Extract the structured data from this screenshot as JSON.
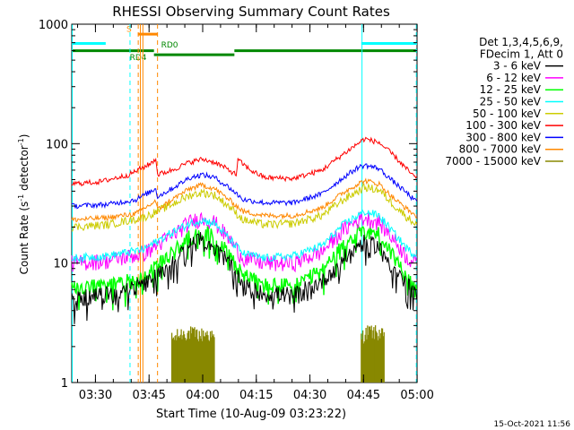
{
  "chart_data": {
    "type": "line",
    "title": "RHESSI Observing Summary Count Rates",
    "xlabel": "Start Time (10-Aug-09 03:23:22)",
    "ylabel_parts": [
      "Count Rate (s",
      "-1",
      " detector",
      "-1",
      ")"
    ],
    "yscale": "log",
    "ylim": [
      1,
      1000
    ],
    "xlim_minutes": [
      0,
      96.6
    ],
    "x_ticks": [
      {
        "label": "03:30",
        "min": 6.63
      },
      {
        "label": "03:45",
        "min": 21.63
      },
      {
        "label": "04:00",
        "min": 36.63
      },
      {
        "label": "04:15",
        "min": 51.63
      },
      {
        "label": "04:30",
        "min": 66.63
      },
      {
        "label": "04:45",
        "min": 81.63
      },
      {
        "label": "05:00",
        "min": 96.63
      }
    ],
    "y_ticks": [
      {
        "label": "1",
        "value": 1
      },
      {
        "label": "10",
        "value": 10
      },
      {
        "label": "100",
        "value": 100
      },
      {
        "label": "1000",
        "value": 1000
      }
    ],
    "legend_header": [
      "Det 1,3,4,5,6,9,",
      "FDecim 1, Att 0"
    ],
    "series": [
      {
        "name": "3 - 6 keV",
        "color": "#000000",
        "points": [
          [
            0,
            5
          ],
          [
            10,
            5.5
          ],
          [
            20,
            6.5
          ],
          [
            28,
            10
          ],
          [
            33,
            14
          ],
          [
            36.5,
            16
          ],
          [
            40,
            14
          ],
          [
            44,
            10
          ],
          [
            48,
            6.5
          ],
          [
            54,
            5.5
          ],
          [
            62,
            5.5
          ],
          [
            70,
            7
          ],
          [
            76,
            11
          ],
          [
            80,
            14
          ],
          [
            82,
            15
          ],
          [
            86,
            14
          ],
          [
            90,
            9
          ],
          [
            94,
            6.5
          ],
          [
            96.6,
            5.5
          ]
        ]
      },
      {
        "name": "6 - 12 keV",
        "color": "#ff00ff",
        "points": [
          [
            0,
            10
          ],
          [
            10,
            10.5
          ],
          [
            20,
            12
          ],
          [
            28,
            17
          ],
          [
            33,
            22
          ],
          [
            36.5,
            24
          ],
          [
            40,
            22
          ],
          [
            44,
            16
          ],
          [
            48,
            11
          ],
          [
            54,
            10
          ],
          [
            62,
            10
          ],
          [
            70,
            12.5
          ],
          [
            76,
            19
          ],
          [
            80,
            23
          ],
          [
            82,
            24
          ],
          [
            86,
            22
          ],
          [
            90,
            16
          ],
          [
            94,
            11
          ],
          [
            96.6,
            10
          ]
        ]
      },
      {
        "name": "12 - 25 keV",
        "color": "#00ff00",
        "points": [
          [
            0,
            6
          ],
          [
            10,
            6.5
          ],
          [
            20,
            7.5
          ],
          [
            28,
            12
          ],
          [
            33,
            16.5
          ],
          [
            36.5,
            18.5
          ],
          [
            40,
            16.5
          ],
          [
            44,
            12
          ],
          [
            48,
            8
          ],
          [
            54,
            6.5
          ],
          [
            62,
            6.5
          ],
          [
            70,
            8.5
          ],
          [
            76,
            14
          ],
          [
            80,
            18
          ],
          [
            82,
            19
          ],
          [
            86,
            17.5
          ],
          [
            90,
            11.5
          ],
          [
            94,
            7.5
          ],
          [
            96.6,
            6
          ]
        ]
      },
      {
        "name": "25 - 50 keV",
        "color": "#00ffff",
        "points": [
          [
            0,
            11
          ],
          [
            10,
            11.5
          ],
          [
            20,
            13
          ],
          [
            28,
            18
          ],
          [
            33,
            21.5
          ],
          [
            36.5,
            23
          ],
          [
            40,
            21.5
          ],
          [
            44,
            16
          ],
          [
            48,
            12
          ],
          [
            54,
            11
          ],
          [
            62,
            11.5
          ],
          [
            70,
            14
          ],
          [
            76,
            21
          ],
          [
            80,
            25
          ],
          [
            82,
            27
          ],
          [
            86,
            25
          ],
          [
            90,
            18
          ],
          [
            94,
            13
          ],
          [
            96.6,
            11.5
          ]
        ]
      },
      {
        "name": "50 - 100 keV",
        "color": "#cccc00",
        "points": [
          [
            0,
            20
          ],
          [
            10,
            21
          ],
          [
            20,
            24
          ],
          [
            28,
            31
          ],
          [
            33,
            37
          ],
          [
            36.5,
            39
          ],
          [
            40,
            37
          ],
          [
            44,
            30
          ],
          [
            48,
            23
          ],
          [
            54,
            21
          ],
          [
            62,
            21.5
          ],
          [
            70,
            25
          ],
          [
            76,
            34
          ],
          [
            80,
            40
          ],
          [
            82,
            43
          ],
          [
            86,
            41
          ],
          [
            90,
            31
          ],
          [
            94,
            24
          ],
          [
            96.6,
            21
          ]
        ]
      },
      {
        "name": "100 - 300 keV",
        "color": "#ff0000",
        "points": [
          [
            0,
            46
          ],
          [
            8,
            48
          ],
          [
            16,
            55
          ],
          [
            22,
            68
          ],
          [
            23.5,
            75
          ],
          [
            24,
            55
          ],
          [
            28,
            60
          ],
          [
            33,
            70
          ],
          [
            36.5,
            74
          ],
          [
            40,
            70
          ],
          [
            44,
            60
          ],
          [
            46,
            55
          ],
          [
            46.5,
            73
          ],
          [
            50,
            60
          ],
          [
            54,
            52
          ],
          [
            62,
            51
          ],
          [
            70,
            60
          ],
          [
            76,
            82
          ],
          [
            80,
            100
          ],
          [
            82,
            110
          ],
          [
            86,
            102
          ],
          [
            90,
            80
          ],
          [
            94,
            60
          ],
          [
            96.6,
            50
          ]
        ]
      },
      {
        "name": "300 - 800 keV",
        "color": "#0000ff",
        "points": [
          [
            0,
            30
          ],
          [
            10,
            31
          ],
          [
            18,
            34
          ],
          [
            23.5,
            42
          ],
          [
            24,
            36
          ],
          [
            28,
            42
          ],
          [
            33,
            52
          ],
          [
            36.5,
            55
          ],
          [
            40,
            52
          ],
          [
            44,
            43
          ],
          [
            48,
            34
          ],
          [
            54,
            32
          ],
          [
            62,
            32
          ],
          [
            70,
            38
          ],
          [
            76,
            52
          ],
          [
            80,
            63
          ],
          [
            82,
            66
          ],
          [
            86,
            62
          ],
          [
            90,
            48
          ],
          [
            94,
            38
          ],
          [
            96.6,
            32
          ]
        ]
      },
      {
        "name": "800 - 7000 keV",
        "color": "#ff8800",
        "points": [
          [
            0,
            23
          ],
          [
            10,
            24
          ],
          [
            18,
            26
          ],
          [
            23.5,
            33
          ],
          [
            24,
            28
          ],
          [
            28,
            34
          ],
          [
            33,
            42
          ],
          [
            36.5,
            45
          ],
          [
            40,
            42
          ],
          [
            44,
            34
          ],
          [
            48,
            27
          ],
          [
            54,
            25
          ],
          [
            62,
            25
          ],
          [
            70,
            29
          ],
          [
            76,
            39
          ],
          [
            80,
            46
          ],
          [
            82,
            49
          ],
          [
            86,
            46
          ],
          [
            90,
            35
          ],
          [
            94,
            28
          ],
          [
            96.6,
            24.5
          ]
        ]
      },
      {
        "name": "7000 - 15000 keV",
        "color": "#888800",
        "points": [
          [
            28,
            2.3
          ],
          [
            31,
            2.6
          ],
          [
            33,
            2.6
          ],
          [
            36,
            2.5
          ],
          [
            38,
            2.6
          ],
          [
            40,
            2.3
          ],
          [
            81,
            2.4
          ],
          [
            83,
            2.7
          ],
          [
            86,
            2.6
          ],
          [
            87.5,
            2.4
          ]
        ]
      }
    ],
    "state_bars": [
      {
        "label": "",
        "color": "#00ffff",
        "value": 690,
        "segments": [
          [
            0,
            9.5
          ],
          [
            81,
            96.6
          ]
        ]
      },
      {
        "label": "",
        "color": "#008800",
        "value": 600,
        "segments": [
          [
            0,
            23
          ],
          [
            45.5,
            96.6
          ]
        ]
      },
      {
        "label": "",
        "color": "#008800",
        "value": 555,
        "segments": [
          [
            23,
            45.5
          ]
        ]
      },
      {
        "label": "",
        "color": "#ff8800",
        "value": 825,
        "segments": [
          [
            18.5,
            24
          ]
        ]
      }
    ],
    "bar_labels": [
      {
        "label": "S",
        "color": "#ff8800",
        "min": 15.3,
        "value": 865
      },
      {
        "label": "RD0",
        "color": "#008800",
        "min": 25,
        "value": 640
      },
      {
        "label": "RD4",
        "color": "#008800",
        "min": 16.2,
        "value": 500
      }
    ],
    "vlines": [
      {
        "min": 0.15,
        "color": "#00ffff",
        "dash": false
      },
      {
        "min": 16.3,
        "color": "#00ffff",
        "dash": true
      },
      {
        "min": 19.2,
        "color": "#ff8800",
        "dash": false
      },
      {
        "min": 19.9,
        "color": "#ff8800",
        "dash": false
      },
      {
        "min": 18.6,
        "color": "#ff8800",
        "dash": true
      },
      {
        "min": 24.0,
        "color": "#ff8800",
        "dash": true
      },
      {
        "min": 81.2,
        "color": "#00ffff",
        "dash": false
      },
      {
        "min": 96.4,
        "color": "#00ffff",
        "dash": true
      }
    ],
    "timestamp": "15-Oct-2021 11:56"
  }
}
